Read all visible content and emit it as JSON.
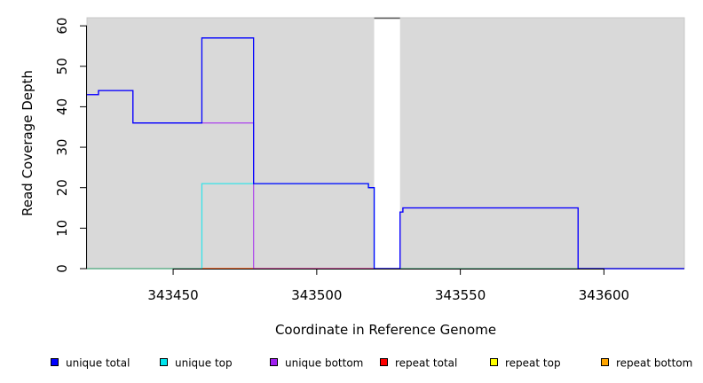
{
  "chart_data": {
    "type": "line",
    "xlabel": "Coordinate in Reference Genome",
    "ylabel": "Read Coverage Depth",
    "xlim": [
      343420,
      343628
    ],
    "ylim": [
      0,
      62
    ],
    "x_ticks": [
      343450,
      343500,
      343550,
      343600
    ],
    "y_ticks": [
      0,
      10,
      20,
      30,
      40,
      50,
      60
    ],
    "grid": false,
    "background": "#d9d9d9",
    "legend_position": "bottom",
    "gap_regions": [
      {
        "x": [
          343520,
          343529
        ]
      }
    ],
    "series": [
      {
        "name": "unique total",
        "color": "#0000ff",
        "steps": [
          [
            343420,
            43
          ],
          [
            343424,
            44
          ],
          [
            343436,
            36
          ],
          [
            343460,
            57
          ],
          [
            343478,
            21
          ],
          [
            343518,
            20
          ],
          [
            343520,
            0
          ],
          [
            343529,
            14
          ],
          [
            343530,
            15
          ],
          [
            343591,
            0
          ],
          [
            343628,
            0
          ]
        ]
      },
      {
        "name": "unique top",
        "color": "#00e5ee",
        "steps": [
          [
            343420,
            0
          ],
          [
            343460,
            21
          ],
          [
            343478,
            21
          ],
          [
            343518,
            20
          ],
          [
            343520,
            0
          ],
          [
            343628,
            0
          ]
        ]
      },
      {
        "name": "unique bottom",
        "color": "#a020f0",
        "steps": [
          [
            343420,
            43
          ],
          [
            343424,
            44
          ],
          [
            343436,
            36
          ],
          [
            343478,
            0
          ],
          [
            343529,
            14
          ],
          [
            343530,
            15
          ],
          [
            343591,
            0
          ],
          [
            343628,
            0
          ]
        ]
      },
      {
        "name": "repeat total",
        "color": "#ff0000",
        "steps": [
          [
            343420,
            0
          ],
          [
            343628,
            0
          ]
        ]
      },
      {
        "name": "repeat top",
        "color": "#ffff00",
        "steps": [
          [
            343420,
            0
          ],
          [
            343628,
            0
          ]
        ]
      },
      {
        "name": "repeat bottom",
        "color": "#ffa500",
        "steps": [
          [
            343420,
            0
          ],
          [
            343628,
            0
          ]
        ]
      }
    ]
  }
}
